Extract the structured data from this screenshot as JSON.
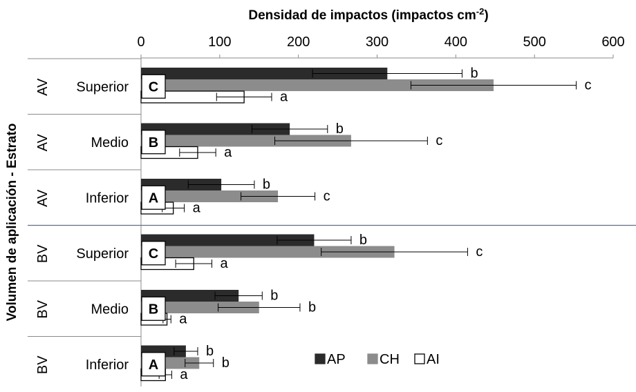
{
  "chart_data": {
    "type": "bar",
    "orientation": "horizontal",
    "title": "Densidad de impactos (impactos cm",
    "title_superscript": "-2",
    "title_close": ")",
    "ylabel": "Volumen de aplicación - Estrato",
    "xlim": [
      0,
      600
    ],
    "xticks": [
      "0",
      "100",
      "200",
      "300",
      "400",
      "500",
      "600"
    ],
    "x_axis_position": "top",
    "legend_position": "bottom-right",
    "series": [
      {
        "name": "AP",
        "color": "#2b2b2b",
        "fill": true
      },
      {
        "name": "CH",
        "color": "#8c8c8c",
        "fill": true
      },
      {
        "name": "AI",
        "color": "#ffffff",
        "fill": false
      }
    ],
    "groups": [
      {
        "volume": "AV",
        "stratum": "Superior",
        "box": "C",
        "values": [
          313,
          448,
          131
        ],
        "errors": [
          95,
          105,
          35
        ],
        "sig": [
          "b",
          "c",
          "a"
        ]
      },
      {
        "volume": "AV",
        "stratum": "Medio",
        "box": "B",
        "values": [
          189,
          267,
          72
        ],
        "errors": [
          48,
          97,
          23
        ],
        "sig": [
          "b",
          "c",
          "a"
        ]
      },
      {
        "volume": "AV",
        "stratum": "Inferior",
        "box": "A",
        "values": [
          102,
          174,
          41
        ],
        "errors": [
          42,
          47,
          14
        ],
        "sig": [
          "b",
          "c",
          "a"
        ]
      },
      {
        "volume": "BV",
        "stratum": "Superior",
        "box": "C",
        "values": [
          220,
          322,
          67
        ],
        "errors": [
          47,
          93,
          23
        ],
        "sig": [
          "b",
          "c",
          "a"
        ]
      },
      {
        "volume": "BV",
        "stratum": "Medio",
        "box": "B",
        "values": [
          124,
          150,
          33
        ],
        "errors": [
          30,
          52,
          5
        ],
        "sig": [
          "b",
          "b",
          "a"
        ]
      },
      {
        "volume": "BV",
        "stratum": "Inferior",
        "box": "A",
        "values": [
          57,
          74,
          31
        ],
        "errors": [
          15,
          18,
          8
        ],
        "sig": [
          "b",
          "b",
          "a"
        ]
      }
    ]
  }
}
